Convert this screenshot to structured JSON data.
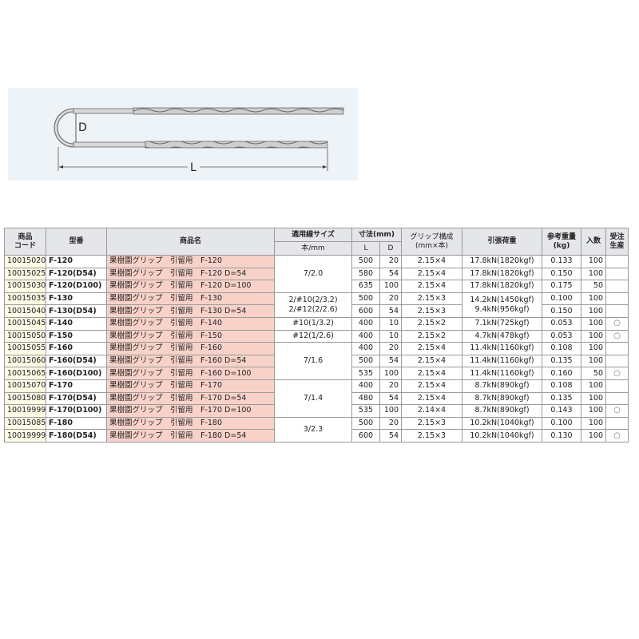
{
  "diagram": {
    "label_d": "D",
    "label_l": "L"
  },
  "table": {
    "headers": {
      "code": "商品\nコード",
      "model": "型番",
      "name": "商品名",
      "wire_size": "適用線サイズ",
      "wire_size_unit": "本/mm",
      "dimension": "寸法(mm)",
      "dim_l": "L",
      "dim_d": "D",
      "grip": "グリップ構成\n(mm×本)",
      "tension": "引張荷重",
      "weight": "参考重量\n(kg)",
      "qty": "入数",
      "order": "受注\n生産"
    },
    "rows": [
      {
        "code": "10015020",
        "model": "F-120",
        "name": "果樹園グリップ　引留用　F-120",
        "wire_size": "7/2.0",
        "wire_size_rows": 3,
        "L": "500",
        "D": "20",
        "grip": "2.15×4",
        "tension": "17.8kN(1820kgf)",
        "tension_rows": 1,
        "weight": "0.133",
        "qty": "100",
        "order": ""
      },
      {
        "code": "10015025",
        "model": "F-120(D54)",
        "name": "果樹園グリップ　引留用　F-120 D=54",
        "L": "580",
        "D": "54",
        "grip": "2.15×4",
        "tension": "17.8kN(1820kgf)",
        "tension_rows": 1,
        "weight": "0.150",
        "qty": "100",
        "order": ""
      },
      {
        "code": "10015030",
        "model": "F-120(D100)",
        "name": "果樹園グリップ　引留用　F-120 D=100",
        "L": "635",
        "D": "100",
        "grip": "2.15×4",
        "tension": "17.8kN(1820kgf)",
        "tension_rows": 1,
        "weight": "0.175",
        "qty": "50",
        "order": ""
      },
      {
        "code": "10015035",
        "model": "F-130",
        "name": "果樹園グリップ　引留用　F-130",
        "wire_size": "2/#10(2/3.2)\n2/#12(2/2.6)",
        "wire_size_rows": 2,
        "L": "500",
        "D": "20",
        "grip": "2.15×3",
        "tension": "14.2kN(1450kgf)\n9.4kN(956kgf)",
        "tension_rows": 2,
        "weight": "0.100",
        "qty": "100",
        "order": ""
      },
      {
        "code": "10015040",
        "model": "F-130(D54)",
        "name": "果樹園グリップ　引留用　F-130 D=54",
        "L": "600",
        "D": "54",
        "grip": "2.15×3",
        "weight": "0.150",
        "qty": "100",
        "order": ""
      },
      {
        "code": "10015045",
        "model": "F-140",
        "name": "果樹園グリップ　引留用　F-140",
        "wire_size": "#10(1/3.2)",
        "wire_size_rows": 1,
        "L": "400",
        "D": "10",
        "grip": "2.15×2",
        "tension": "7.1kN(725kgf)",
        "tension_rows": 1,
        "weight": "0.053",
        "qty": "100",
        "order": "○"
      },
      {
        "code": "10015050",
        "model": "F-150",
        "name": "果樹園グリップ　引留用　F-150",
        "wire_size": "#12(1/2.6)",
        "wire_size_rows": 1,
        "L": "400",
        "D": "10",
        "grip": "2.15×2",
        "tension": "4.7kN(478kgf)",
        "tension_rows": 1,
        "weight": "0.053",
        "qty": "100",
        "order": "○"
      },
      {
        "code": "10015055",
        "model": "F-160",
        "name": "果樹園グリップ　引留用　F-160",
        "wire_size": "7/1.6",
        "wire_size_rows": 3,
        "L": "400",
        "D": "20",
        "grip": "2.15×4",
        "tension": "11.4kN(1160kgf)",
        "tension_rows": 1,
        "weight": "0.108",
        "qty": "100",
        "order": ""
      },
      {
        "code": "10015060",
        "model": "F-160(D54)",
        "name": "果樹園グリップ　引留用　F-160 D=54",
        "L": "500",
        "D": "54",
        "grip": "2.15×4",
        "tension": "11.4kN(1160kgf)",
        "tension_rows": 1,
        "weight": "0.135",
        "qty": "100",
        "order": ""
      },
      {
        "code": "10015065",
        "model": "F-160(D100)",
        "name": "果樹園グリップ　引留用　F-160 D=100",
        "L": "535",
        "D": "100",
        "grip": "2.15×4",
        "tension": "11.4kN(1160kgf)",
        "tension_rows": 1,
        "weight": "0.160",
        "qty": "50",
        "order": "○"
      },
      {
        "code": "10015070",
        "model": "F-170",
        "name": "果樹園グリップ　引留用　F-170",
        "wire_size": "7/1.4",
        "wire_size_rows": 3,
        "L": "400",
        "D": "20",
        "grip": "2.15×4",
        "tension": "8.7kN(890kgf)",
        "tension_rows": 1,
        "weight": "0.108",
        "qty": "100",
        "order": ""
      },
      {
        "code": "10015080",
        "model": "F-170(D54)",
        "name": "果樹園グリップ　引留用　F-170 D=54",
        "L": "480",
        "D": "54",
        "grip": "2.15×4",
        "tension": "8.7kN(890kgf)",
        "tension_rows": 1,
        "weight": "0.135",
        "qty": "100",
        "order": ""
      },
      {
        "code": "10019999",
        "model": "F-170(D100)",
        "name": "果樹園グリップ　引留用　F-170 D=100",
        "L": "535",
        "D": "100",
        "grip": "2.14×4",
        "tension": "8.7kN(890kgf)",
        "tension_rows": 1,
        "weight": "0.143",
        "qty": "100",
        "order": "○"
      },
      {
        "code": "10015085",
        "model": "F-180",
        "name": "果樹園グリップ　引留用　F-180",
        "wire_size": "3/2.3",
        "wire_size_rows": 2,
        "L": "500",
        "D": "20",
        "grip": "2.15×3",
        "tension": "10.2kN(1040kgf)",
        "tension_rows": 1,
        "weight": "0.100",
        "qty": "100",
        "order": ""
      },
      {
        "code": "10019999",
        "model": "F-180(D54)",
        "name": "果樹園グリップ　引留用　F-180 D=54",
        "L": "600",
        "D": "54",
        "grip": "2.15×3",
        "tension": "10.2kN(1040kgf)",
        "tension_rows": 1,
        "weight": "0.130",
        "qty": "100",
        "order": "○"
      }
    ]
  }
}
